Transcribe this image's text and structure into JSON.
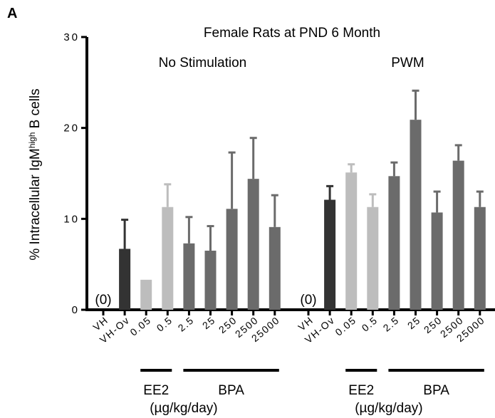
{
  "chart_data": {
    "type": "bar",
    "panel_label": "A",
    "title": "Female Rats at PND 6 Month",
    "y_label": {
      "text": "% Intracellular IgM",
      "superscript": "high",
      "suffix": " B cells"
    },
    "categories": [
      "VH",
      "VH-Ov",
      "0.05",
      "0.5",
      "2.5",
      "25",
      "250",
      "2500",
      "25000"
    ],
    "colors": [
      "#333333",
      "#333333",
      "#bdbdbd",
      "#bdbdbd",
      "#6b6b6b",
      "#6b6b6b",
      "#6b6b6b",
      "#6b6b6b",
      "#6b6b6b"
    ],
    "groups": [
      {
        "name": "No Stimulation",
        "values": [
          0,
          6.7,
          3.3,
          11.3,
          7.3,
          6.5,
          11.1,
          14.4,
          9.1
        ],
        "errors": [
          null,
          3.2,
          null,
          2.5,
          2.9,
          2.7,
          6.2,
          4.5,
          3.5
        ],
        "value_labels": [
          "(0)",
          null,
          null,
          null,
          null,
          null,
          null,
          null,
          null
        ]
      },
      {
        "name": "PWM",
        "values": [
          0,
          12.1,
          15.1,
          11.3,
          14.7,
          20.9,
          10.7,
          16.4,
          11.3
        ],
        "errors": [
          null,
          1.5,
          0.9,
          1.4,
          1.5,
          3.2,
          2.3,
          1.7,
          1.7
        ],
        "value_labels": [
          "(0)",
          null,
          null,
          null,
          null,
          null,
          null,
          null,
          null
        ]
      }
    ],
    "treatments": [
      {
        "name": "EE2",
        "start": "0.05",
        "end": "0.5"
      },
      {
        "name": "BPA",
        "start": "2.5",
        "end": "25000"
      }
    ],
    "dose_unit": "(µg/kg/day)",
    "ylim": [
      0,
      30
    ],
    "yticks": [
      0,
      10,
      20,
      30
    ]
  }
}
